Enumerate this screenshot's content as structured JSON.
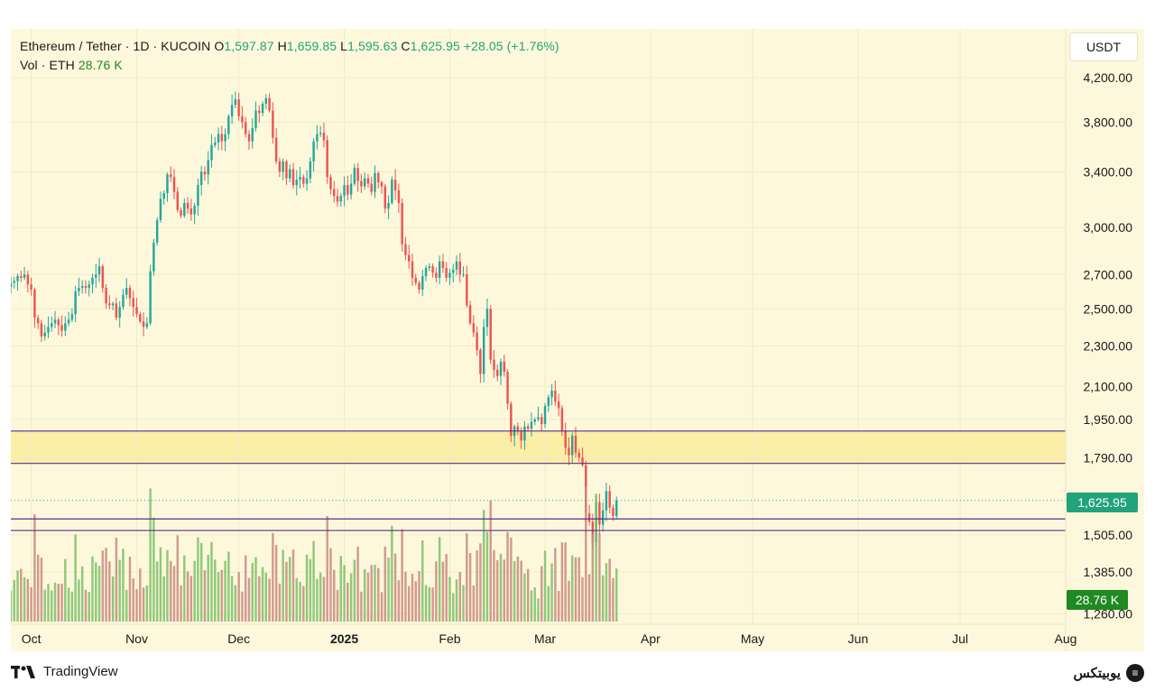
{
  "header": {
    "symbol": "Ethereum / Tether · 1D · KUCOIN",
    "open_key": "O",
    "open": "1,597.87",
    "high_key": "H",
    "high": "1,659.85",
    "low_key": "L",
    "low": "1,595.63",
    "close_key": "C",
    "close": "1,625.95",
    "change": "+28.05 (+1.76%)",
    "vol_label": "Vol · ETH",
    "vol_value": "28.76 K"
  },
  "unit_label": "USDT",
  "last_price_label": "1,625.95",
  "volume_label": "28.76 K",
  "footer": {
    "brand": "TradingView",
    "watermark": "یوبیتکس"
  },
  "colors": {
    "up": "#26a69a",
    "down": "#ef5350",
    "level_line": "#5b2d91",
    "band": "#fbeea6",
    "background": "#fdf8dc",
    "grid": "#f1ebc6"
  },
  "chart_data": {
    "type": "candlestick",
    "scale": "log",
    "y_ticks": [
      "4,200.00",
      "3,800.00",
      "3,400.00",
      "3,000.00",
      "2,700.00",
      "2,500.00",
      "2,300.00",
      "2,100.00",
      "1,950.00",
      "1,790.00",
      "1,505.00",
      "1,385.00",
      "1,260.00"
    ],
    "y_tick_values": [
      4200,
      3800,
      3400,
      3000,
      2700,
      2500,
      2300,
      2100,
      1950,
      1790,
      1505,
      1385,
      1260
    ],
    "x_ticks": [
      {
        "label": "Oct",
        "date": "2024-10-01",
        "bold": false
      },
      {
        "label": "Nov",
        "date": "2024-11-01",
        "bold": false
      },
      {
        "label": "Dec",
        "date": "2024-12-01",
        "bold": false
      },
      {
        "label": "2025",
        "date": "2025-01-01",
        "bold": true
      },
      {
        "label": "Feb",
        "date": "2025-02-01",
        "bold": false
      },
      {
        "label": "Mar",
        "date": "2025-03-01",
        "bold": false
      },
      {
        "label": "Apr",
        "date": "2025-04-01",
        "bold": false
      },
      {
        "label": "May",
        "date": "2025-05-01",
        "bold": false
      },
      {
        "label": "Jun",
        "date": "2025-06-01",
        "bold": false
      },
      {
        "label": "Jul",
        "date": "2025-07-01",
        "bold": false
      },
      {
        "label": "Aug",
        "date": "2025-08-01",
        "bold": false
      }
    ],
    "x_range": [
      "2024-09-25",
      "2025-08-01"
    ],
    "y_range": [
      1255,
      4500
    ],
    "last_price": 1625.95,
    "levels": [
      1900,
      1767,
      1560,
      1520
    ],
    "band": [
      1767,
      1900
    ],
    "close_series": {
      "start_date": "2024-09-25",
      "closes": [
        2650,
        2660,
        2690,
        2680,
        2700,
        2640,
        2610,
        2450,
        2420,
        2350,
        2370,
        2400,
        2420,
        2440,
        2410,
        2380,
        2420,
        2440,
        2470,
        2600,
        2620,
        2630,
        2620,
        2640,
        2680,
        2700,
        2750,
        2620,
        2530,
        2520,
        2530,
        2450,
        2510,
        2580,
        2620,
        2560,
        2510,
        2470,
        2430,
        2400,
        2420,
        2720,
        2900,
        3050,
        3200,
        3240,
        3380,
        3360,
        3250,
        3120,
        3080,
        3170,
        3130,
        3090,
        3150,
        3300,
        3400,
        3380,
        3490,
        3610,
        3630,
        3700,
        3640,
        3700,
        3850,
        3950,
        4000,
        3850,
        3800,
        3700,
        3640,
        3750,
        3900,
        3880,
        3960,
        4010,
        3900,
        3670,
        3480,
        3400,
        3480,
        3350,
        3420,
        3300,
        3340,
        3360,
        3310,
        3350,
        3480,
        3640,
        3700,
        3710,
        3650,
        3360,
        3270,
        3220,
        3180,
        3220,
        3300,
        3230,
        3310,
        3430,
        3330,
        3290,
        3350,
        3310,
        3250,
        3390,
        3320,
        3290,
        3130,
        3170,
        3340,
        3260,
        3170,
        2890,
        2820,
        2780,
        2680,
        2650,
        2610,
        2690,
        2740,
        2750,
        2710,
        2680,
        2780,
        2740,
        2680,
        2710,
        2730,
        2780,
        2700,
        2700,
        2520,
        2420,
        2370,
        2280,
        2160,
        2400,
        2500,
        2230,
        2180,
        2150,
        2220,
        2170,
        2020,
        1880,
        1920,
        1900,
        1860,
        1920,
        1910,
        1940,
        1950,
        1960,
        1930,
        2010,
        2050,
        2080,
        2030,
        2000,
        1900,
        1830,
        1800,
        1880,
        1810,
        1790,
        1760,
        1580,
        1550,
        1480,
        1620,
        1540,
        1590,
        1660,
        1600,
        1570,
        1625.95
      ]
    }
  }
}
